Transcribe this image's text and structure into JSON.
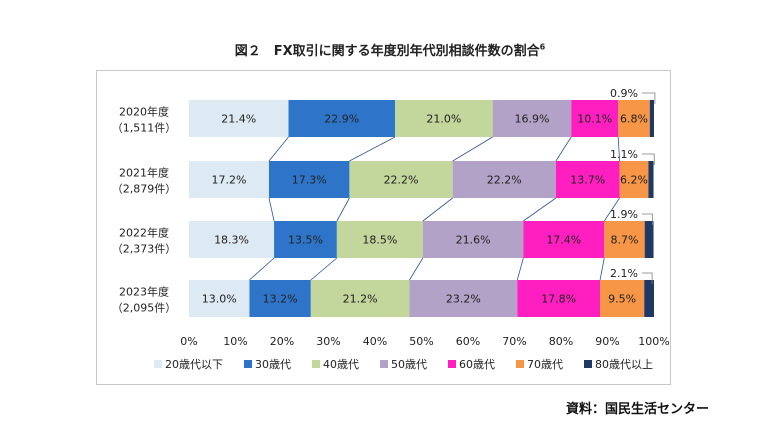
{
  "title": "図２　FX取引に関する年度別年代別相談件数の割合",
  "title_superscript": "6",
  "source": "資料：国民生活センター",
  "chart_data": {
    "type": "bar",
    "orientation": "horizontal",
    "stacked": "percent",
    "categories": [
      {
        "label": "2020年度",
        "count": "（1,511件）"
      },
      {
        "label": "2021年度",
        "count": "（2,879件）"
      },
      {
        "label": "2022年度",
        "count": "（2,373件）"
      },
      {
        "label": "2023年度",
        "count": "（2,095件）"
      }
    ],
    "series": [
      {
        "name": "20歳代以下",
        "color": "#dde9f3",
        "values": [
          21.4,
          17.2,
          18.3,
          13.0
        ],
        "labels": [
          "21.4%",
          "17.2%",
          "18.3%",
          "13.0%"
        ]
      },
      {
        "name": "30歳代",
        "color": "#2e75c9",
        "values": [
          22.9,
          17.3,
          13.5,
          13.2
        ],
        "labels": [
          "22.9%",
          "17.3%",
          "13.5%",
          "13.2%"
        ]
      },
      {
        "name": "40歳代",
        "color": "#c3d69b",
        "values": [
          21.0,
          22.2,
          18.5,
          21.2
        ],
        "labels": [
          "21.0%",
          "22.2%",
          "18.5%",
          "21.2%"
        ]
      },
      {
        "name": "50歳代",
        "color": "#b3a2c7",
        "values": [
          16.9,
          22.2,
          21.6,
          23.2
        ],
        "labels": [
          "16.9%",
          "22.2%",
          "21.6%",
          "23.2%"
        ]
      },
      {
        "name": "60歳代",
        "color": "#ff1fc0",
        "values": [
          10.1,
          13.7,
          17.4,
          17.8
        ],
        "labels": [
          "10.1%",
          "13.7%",
          "17.4%",
          "17.8%"
        ]
      },
      {
        "name": "70歳代",
        "color": "#f79646",
        "values": [
          6.8,
          6.2,
          8.7,
          9.5
        ],
        "labels": [
          "6.8%",
          "6.2%",
          "8.7%",
          "9.5%"
        ]
      },
      {
        "name": "80歳代以上",
        "color": "#1f3864",
        "values": [
          0.9,
          1.1,
          1.9,
          2.1
        ],
        "labels": [
          "0.9%",
          "1.1%",
          "1.9%",
          "2.1%"
        ]
      }
    ],
    "xticks": [
      "0%",
      "10%",
      "20%",
      "30%",
      "40%",
      "50%",
      "60%",
      "70%",
      "80%",
      "90%",
      "100%"
    ],
    "xlim": [
      0,
      100
    ],
    "legend_position": "bottom",
    "series_lines": true,
    "grid": false
  }
}
